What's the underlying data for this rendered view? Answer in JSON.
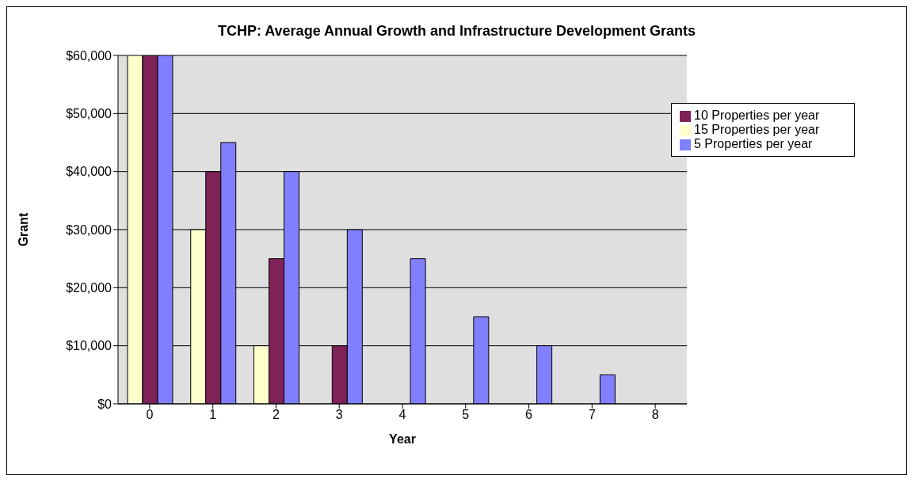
{
  "chart_data": {
    "type": "bar",
    "title": "TCHP: Average Annual Growth and Infrastructure Development Grants",
    "xlabel": "Year",
    "ylabel": "Grant",
    "categories": [
      "0",
      "1",
      "2",
      "3",
      "4",
      "5",
      "6",
      "7",
      "8"
    ],
    "series": [
      {
        "name": "15 Properties per year",
        "color": "#ffffcc",
        "values": [
          60000,
          30000,
          10000,
          0,
          0,
          0,
          0,
          0,
          0
        ]
      },
      {
        "name": "10 Properties per year",
        "color": "#7f2257",
        "values": [
          60000,
          40000,
          25000,
          10000,
          0,
          0,
          0,
          0,
          0
        ]
      },
      {
        "name": "5 Properties per year",
        "color": "#8080ff",
        "values": [
          60000,
          45000,
          40000,
          30000,
          25000,
          15000,
          10000,
          5000,
          0
        ]
      }
    ],
    "ylim": [
      0,
      60000
    ],
    "yticks": [
      {
        "value": 0,
        "label": "$0"
      },
      {
        "value": 10000,
        "label": "$10,000"
      },
      {
        "value": 20000,
        "label": "$20,000"
      },
      {
        "value": 30000,
        "label": "$30,000"
      },
      {
        "value": 40000,
        "label": "$40,000"
      },
      {
        "value": 50000,
        "label": "$50,000"
      },
      {
        "value": 60000,
        "label": "$60,000"
      }
    ],
    "grid": "y",
    "legend": "top right"
  }
}
